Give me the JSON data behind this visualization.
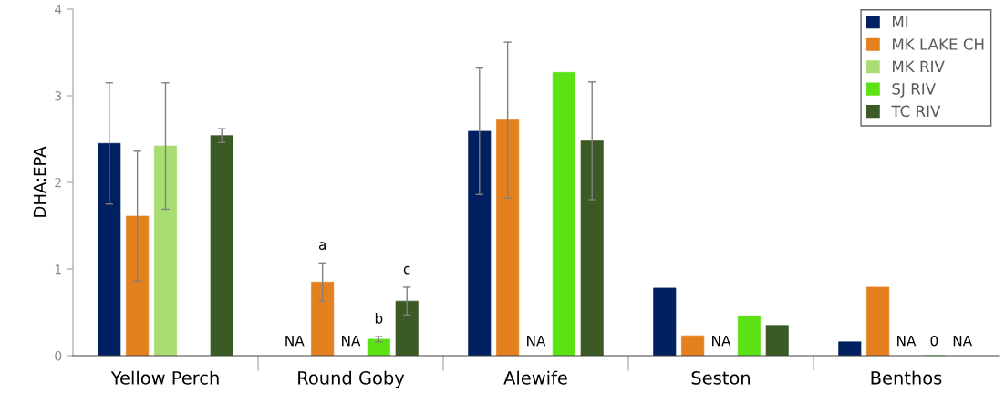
{
  "chart_data": {
    "type": "bar",
    "ylabel": "DHA:EPA",
    "categories": [
      "Yellow Perch",
      "Round Goby",
      "Alewife",
      "Seston",
      "Benthos"
    ],
    "series": [
      {
        "name": "MI",
        "color": "#002060",
        "values": [
          2.45,
          null,
          2.59,
          0.78,
          0.16
        ],
        "errors": [
          0.7,
          null,
          0.73,
          null,
          null
        ],
        "value_labels": [
          null,
          "NA",
          null,
          null,
          null
        ]
      },
      {
        "name": "MK LAKE CH",
        "color": "#e5801e",
        "values": [
          1.61,
          0.85,
          2.72,
          0.23,
          0.79
        ],
        "errors": [
          0.75,
          0.22,
          0.9,
          null,
          null
        ],
        "value_labels": [
          null,
          "a",
          null,
          null,
          null
        ]
      },
      {
        "name": "MK RIV",
        "color": "#a9dc73",
        "values": [
          2.42,
          null,
          null,
          null,
          null
        ],
        "errors": [
          0.73,
          null,
          null,
          null,
          null
        ],
        "value_labels": [
          null,
          "NA",
          "NA",
          "NA",
          "NA"
        ]
      },
      {
        "name": "SJ RIV",
        "color": "#5ce214",
        "values": [
          null,
          0.19,
          3.27,
          0.46,
          0
        ],
        "errors": [
          null,
          0.03,
          null,
          null,
          null
        ],
        "value_labels": [
          null,
          "b",
          null,
          null,
          "0"
        ]
      },
      {
        "name": "TC RIV",
        "color": "#3c5a24",
        "values": [
          2.54,
          0.63,
          2.48,
          0.35,
          null
        ],
        "errors": [
          0.08,
          0.16,
          0.68,
          null,
          null
        ],
        "value_labels": [
          null,
          "c",
          null,
          null,
          "NA"
        ]
      }
    ],
    "ylim": [
      0,
      4
    ],
    "yticks": [
      0,
      1,
      2,
      3,
      4
    ],
    "grid": false,
    "legend": "top right"
  }
}
